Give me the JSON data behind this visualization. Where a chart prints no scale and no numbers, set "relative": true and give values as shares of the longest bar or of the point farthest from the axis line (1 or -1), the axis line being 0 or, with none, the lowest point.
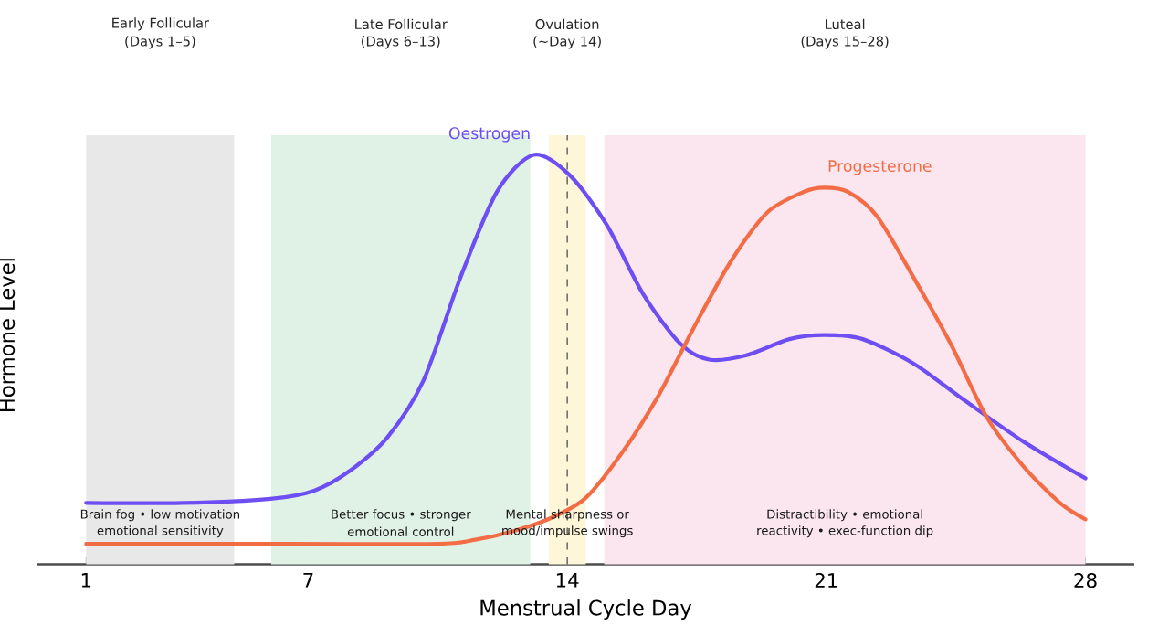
{
  "chart_data": {
    "type": "line",
    "relative": true,
    "xlabel": "Menstrual Cycle Day",
    "ylabel": "Hormone Level",
    "xlim": [
      -0.34,
      29.32
    ],
    "xticks": [
      1,
      7,
      14,
      21,
      28
    ],
    "series": [
      {
        "name": "Oestrogen",
        "color": "#6c4ef2",
        "x": [
          1,
          3.61,
          5.98,
          7.16,
          8.15,
          9.14,
          10.12,
          11.11,
          12.1,
          13.09,
          14.07,
          15.06,
          16.05,
          17.04,
          17.83,
          18.82,
          20.0,
          20.95,
          21.98,
          23.36,
          24.74,
          26.32,
          28
        ],
        "values": [
          0.15,
          0.15,
          0.16,
          0.18,
          0.23,
          0.31,
          0.45,
          0.7,
          0.91,
          1.0,
          0.95,
          0.83,
          0.66,
          0.54,
          0.5,
          0.51,
          0.55,
          0.56,
          0.55,
          0.49,
          0.4,
          0.3,
          0.21
        ]
      },
      {
        "name": "Progesterone",
        "color": "#f26d45",
        "x": [
          1,
          6.57,
          10.52,
          11.51,
          12.5,
          13.48,
          14.47,
          15.46,
          16.45,
          17.43,
          18.42,
          19.41,
          20.4,
          20.95,
          21.58,
          22.37,
          23.36,
          24.35,
          25.33,
          26.32,
          27.31,
          28
        ],
        "values": [
          0.05,
          0.05,
          0.05,
          0.06,
          0.08,
          0.11,
          0.16,
          0.27,
          0.41,
          0.58,
          0.74,
          0.86,
          0.91,
          0.92,
          0.91,
          0.85,
          0.7,
          0.54,
          0.36,
          0.24,
          0.15,
          0.11
        ]
      }
    ],
    "bands": [
      {
        "axis": "x",
        "from": 1,
        "to": 5,
        "color": "#e8e8e8"
      },
      {
        "axis": "x",
        "from": 6,
        "to": 13,
        "color": "#e0f1e6"
      },
      {
        "axis": "x",
        "from": 13.5,
        "to": 14.5,
        "color": "#fdf6d8"
      },
      {
        "axis": "x",
        "from": 15,
        "to": 28,
        "color": "#fbe6ef"
      }
    ],
    "ref_lines": [
      {
        "axis": "x",
        "value": 14,
        "color": "#555555",
        "line_style": "dashed"
      }
    ],
    "annotations": [
      "Early Follicular",
      "(Days 1–5)",
      "Brain fog • low motivation",
      "emotional sensitivity",
      "Late Follicular",
      "(Days 6–13)",
      "Better focus • stronger",
      "emotional control",
      "Ovulation",
      "(~Day 14)",
      "Mental sharpness or",
      "mood/impulse swings",
      "Luteal",
      "(Days 15–28)",
      "Distractibility • emotional",
      "reactivity • exec-function dip"
    ]
  }
}
